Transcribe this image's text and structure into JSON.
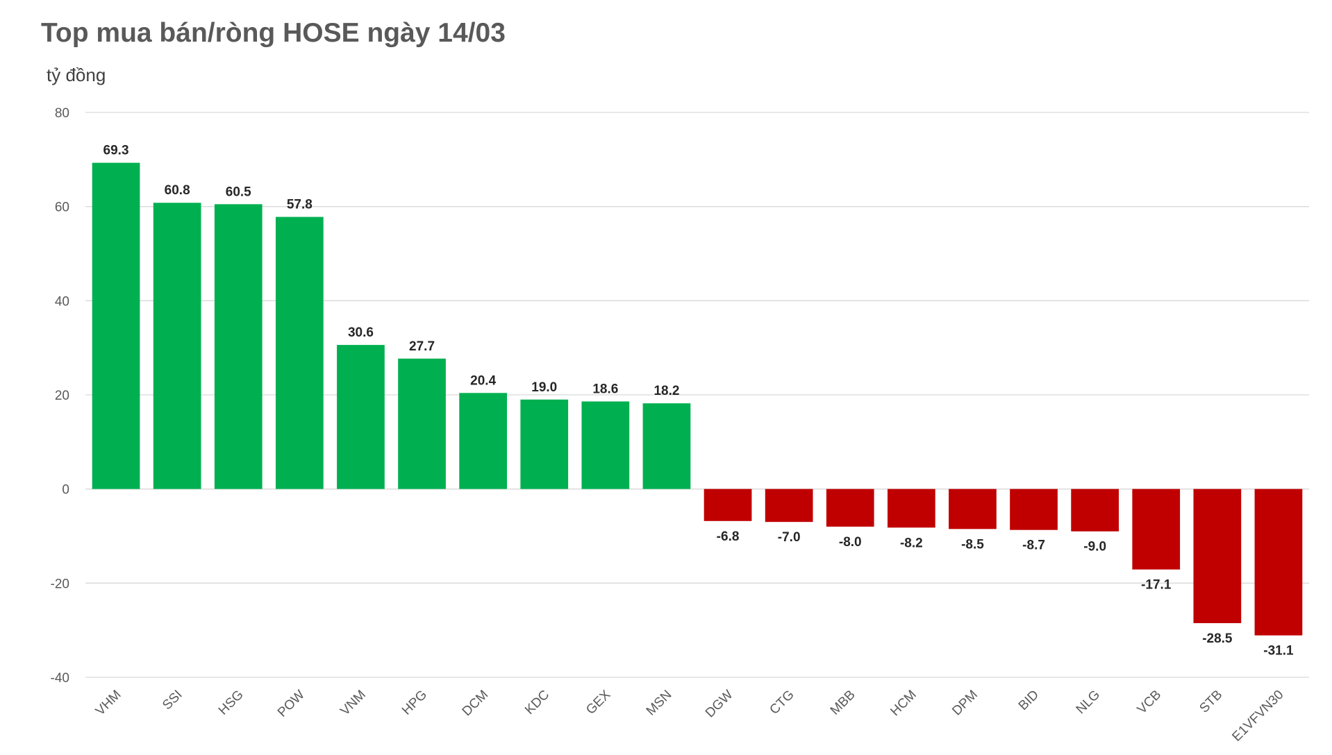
{
  "chart_data": {
    "type": "bar",
    "title": "Top mua bán/ròng HOSE ngày 14/03",
    "ylabel": "tỷ đồng",
    "xlabel": "",
    "ylim": [
      -40,
      80
    ],
    "yticks": [
      80,
      60,
      40,
      20,
      0,
      -20,
      -40
    ],
    "grid": true,
    "categories": [
      "VHM",
      "SSI",
      "HSG",
      "POW",
      "VNM",
      "HPG",
      "DCM",
      "KDC",
      "GEX",
      "MSN",
      "DGW",
      "CTG",
      "MBB",
      "HCM",
      "DPM",
      "BID",
      "NLG",
      "VCB",
      "STB",
      "E1VFVN30"
    ],
    "values": [
      69.3,
      60.8,
      60.5,
      57.8,
      30.6,
      27.7,
      20.4,
      19.0,
      18.6,
      18.2,
      -6.8,
      -7.0,
      -8.0,
      -8.2,
      -8.5,
      -8.7,
      -9.0,
      -17.1,
      -28.5,
      -31.1
    ],
    "colors": {
      "positive": "#00b050",
      "negative": "#c00000"
    }
  }
}
